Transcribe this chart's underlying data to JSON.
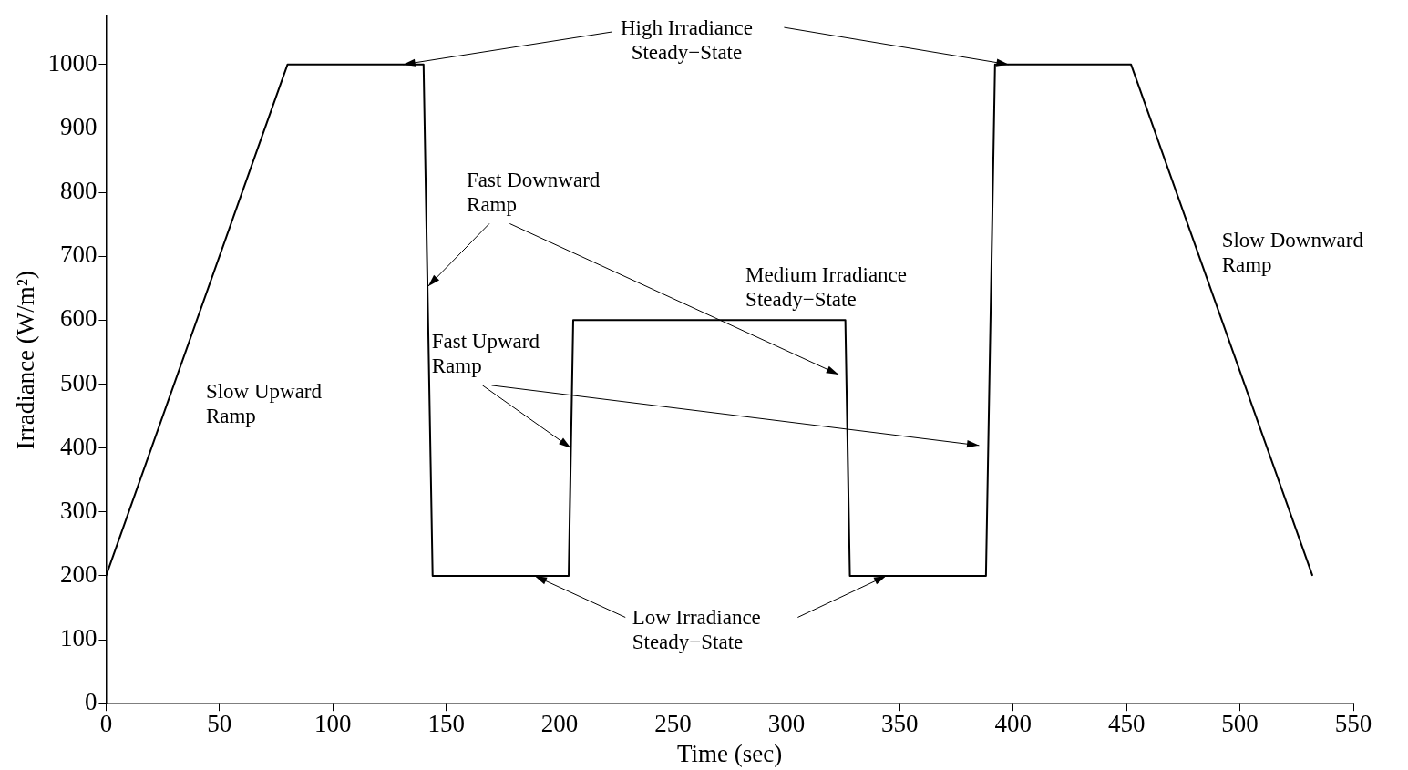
{
  "chart_data": {
    "type": "line",
    "xlabel": "Time (sec)",
    "ylabel": "Irradiance (W/m²)",
    "xlim": [
      0,
      550
    ],
    "xticks": [
      0,
      50,
      100,
      150,
      200,
      250,
      300,
      350,
      400,
      450,
      500,
      550
    ],
    "ylim": [
      0,
      1075
    ],
    "yticks": [
      0,
      100,
      200,
      300,
      400,
      500,
      600,
      700,
      800,
      900,
      1000
    ],
    "grid": false,
    "legend": false,
    "marker": "none",
    "line_style": "solid",
    "series": [
      {
        "color": "#000000",
        "x": [
          0,
          80,
          140,
          144,
          204,
          206,
          326,
          328,
          388,
          392,
          452,
          532
        ],
        "values": [
          200,
          1000,
          1000,
          200,
          200,
          600,
          600,
          200,
          200,
          1000,
          1000,
          200
        ]
      }
    ],
    "annotations": [
      {
        "text": "High Irradiance\nSteady−State",
        "x": 131,
        "y": 1000
      },
      {
        "text": "Fast Downward\nRamp",
        "x": 142,
        "y": 653
      },
      {
        "text": "Fast Upward\nRamp",
        "x": 205,
        "y": 400
      },
      "Medium Irradiance\nSteady−State",
      "Slow Upward\nRamp",
      "Slow Downward\nRamp",
      {
        "text": "Low Irradiance\nSteady−State",
        "x": 189,
        "y": 200
      }
    ]
  }
}
